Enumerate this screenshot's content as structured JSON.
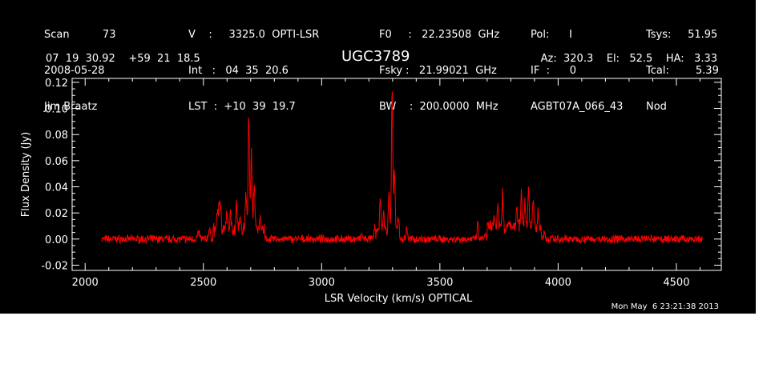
{
  "header": {
    "col1": [
      "Scan          73",
      "2008-05-28",
      "Jim Braatz"
    ],
    "col2": [
      "V    :     3325.0  OPTI-LSR",
      "Int   :   04  35  20.6",
      "LST  :  +10  39  19.7"
    ],
    "col3": [
      "F0     :   22.23508  GHz",
      "Fsky :   21.99021  GHz",
      "BW    :  200.0000  MHz"
    ],
    "col4": [
      "Pol:      I",
      "IF  :      0",
      "AGBT07A_066_43"
    ],
    "col5": [
      "Tsys:     51.95",
      "Tcal:        5.39",
      "Nod"
    ]
  },
  "coords": "07  19  30.92    +59  21  18.5",
  "azel": "Az:  320.3    El:   52.5    HA:   3.33",
  "timestamp": "Mon May  6 23:21:38 2013",
  "chart_data": {
    "type": "line",
    "title": "UGC3789",
    "xlabel": "LSR Velocity (km/s) OPTICAL",
    "ylabel": "Flux Density (Jy)",
    "xlim": [
      1945,
      4690
    ],
    "ylim": [
      -0.024,
      0.123
    ],
    "x_ticks": [
      2000,
      2500,
      3000,
      3500,
      4000,
      4500
    ],
    "y_ticks": [
      "-0.02",
      "0.00",
      "0.02",
      "0.04",
      "0.06",
      "0.08",
      "0.10",
      "0.12"
    ],
    "line_color": "#ff0000",
    "series": [
      {
        "x_range": [
          2070,
          4610
        ],
        "baseline_noise": 0.004,
        "peaks": [
          {
            "x": 2480,
            "y": 0.005
          },
          {
            "x": 2525,
            "y": 0.007
          },
          {
            "x": 2560,
            "y": 0.012
          },
          {
            "x": 2570,
            "y": 0.022
          },
          {
            "x": 2600,
            "y": 0.015
          },
          {
            "x": 2615,
            "y": 0.016
          },
          {
            "x": 2640,
            "y": 0.019
          },
          {
            "x": 2655,
            "y": 0.012
          },
          {
            "x": 2680,
            "y": 0.03
          },
          {
            "x": 2692,
            "y": 0.088
          },
          {
            "x": 2703,
            "y": 0.061
          },
          {
            "x": 2715,
            "y": 0.035
          },
          {
            "x": 2740,
            "y": 0.01
          },
          {
            "x": 3170,
            "y": 0.004
          },
          {
            "x": 3225,
            "y": 0.01
          },
          {
            "x": 3248,
            "y": 0.025
          },
          {
            "x": 3262,
            "y": 0.015
          },
          {
            "x": 3285,
            "y": 0.03
          },
          {
            "x": 3298,
            "y": 0.108
          },
          {
            "x": 3308,
            "y": 0.045
          },
          {
            "x": 3325,
            "y": 0.01
          },
          {
            "x": 3360,
            "y": 0.009
          },
          {
            "x": 3660,
            "y": 0.012
          },
          {
            "x": 3690,
            "y": 0.004
          },
          {
            "x": 3730,
            "y": 0.01
          },
          {
            "x": 3745,
            "y": 0.018
          },
          {
            "x": 3765,
            "y": 0.025
          },
          {
            "x": 3790,
            "y": 0.006
          },
          {
            "x": 3825,
            "y": 0.015
          },
          {
            "x": 3845,
            "y": 0.028
          },
          {
            "x": 3860,
            "y": 0.018
          },
          {
            "x": 3875,
            "y": 0.03
          },
          {
            "x": 3895,
            "y": 0.022
          },
          {
            "x": 3915,
            "y": 0.012
          },
          {
            "x": 3940,
            "y": 0.005
          }
        ]
      }
    ]
  }
}
